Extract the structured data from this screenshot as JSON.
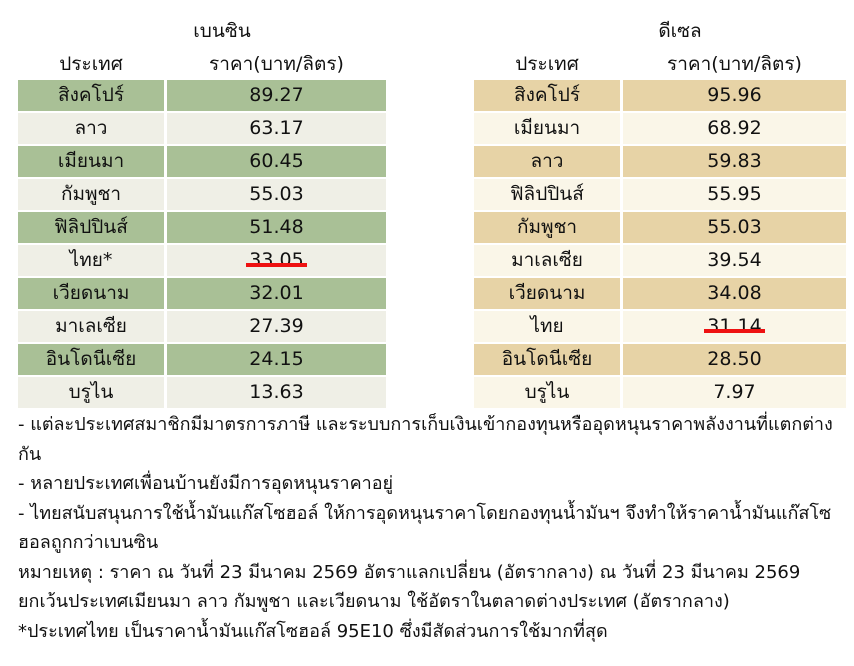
{
  "petrol": {
    "title": "เบนซิน",
    "col_country": "ประเทศ",
    "col_price": "ราคา(บาท/ลิตร)",
    "rows": [
      {
        "country": "สิงคโปร์",
        "price": "89.27",
        "struck": false
      },
      {
        "country": "ลาว",
        "price": "63.17",
        "struck": false
      },
      {
        "country": "เมียนมา",
        "price": "60.45",
        "struck": false
      },
      {
        "country": "กัมพูชา",
        "price": "55.03",
        "struck": false
      },
      {
        "country": "ฟิลิปปินส์",
        "price": "51.48",
        "struck": false
      },
      {
        "country": "ไทย*",
        "price": "33.05",
        "struck": true
      },
      {
        "country": "เวียดนาม",
        "price": "32.01",
        "struck": false
      },
      {
        "country": "มาเลเซีย",
        "price": "27.39",
        "struck": false
      },
      {
        "country": "อินโดนีเซีย",
        "price": "24.15",
        "struck": false
      },
      {
        "country": "บรูไน",
        "price": "13.63",
        "struck": false
      }
    ]
  },
  "diesel": {
    "title": "ดีเซล",
    "col_country": "ประเทศ",
    "col_price": "ราคา(บาท/ลิตร)",
    "rows": [
      {
        "country": "สิงคโปร์",
        "price": "95.96",
        "struck": false
      },
      {
        "country": "เมียนมา",
        "price": "68.92",
        "struck": false
      },
      {
        "country": "ลาว",
        "price": "59.83",
        "struck": false
      },
      {
        "country": "ฟิลิปปินส์",
        "price": "55.95",
        "struck": false
      },
      {
        "country": "กัมพูชา",
        "price": "55.03",
        "struck": false
      },
      {
        "country": "มาเลเซีย",
        "price": "39.54",
        "struck": false
      },
      {
        "country": "เวียดนาม",
        "price": "34.08",
        "struck": false
      },
      {
        "country": "ไทย",
        "price": "31.14",
        "struck": true
      },
      {
        "country": "อินโดนีเซีย",
        "price": "28.50",
        "struck": false
      },
      {
        "country": "บรูไน",
        "price": "7.97",
        "struck": false
      }
    ]
  },
  "colors": {
    "petrol_dark": "#a9c096",
    "petrol_light": "#efefe6",
    "diesel_dark": "#e7d3a6",
    "diesel_light": "#faf6e8",
    "strike": "#ee1111"
  },
  "notes": [
    "- แต่ละประเทศสมาชิกมีมาตรการภาษี และระบบการเก็บเงินเข้ากองทุนหรืออุดหนุนราคาพลังงานที่แตกต่างกัน",
    "- หลายประเทศเพื่อนบ้านยังมีการอุดหนุนราคาอยู่",
    "- ไทยสนับสนุนการใช้น้ำมันแก๊สโซฮอล์ ให้การอุดหนุนราคาโดยกองทุนน้ำมันฯ จึงทำให้ราคาน้ำมันแก๊สโซฮอลถูกกว่าเบนซิน",
    "หมายเหตุ : ราคา ณ วันที่ 23 มีนาคม 2569 อัตราแลกเปลี่ยน (อัตรากลาง) ณ วันที่ 23 มีนาคม 2569 ยกเว้นประเทศเมียนมา ลาว กัมพูชา และเวียดนาม ใช้อัตราในตลาดต่างประเทศ (อัตรากลาง)",
    "*ประเทศไทย เป็นราคาน้ำมันแก๊สโซฮอล์ 95E10 ซึ่งมีสัดส่วนการใช้มากที่สุด"
  ]
}
